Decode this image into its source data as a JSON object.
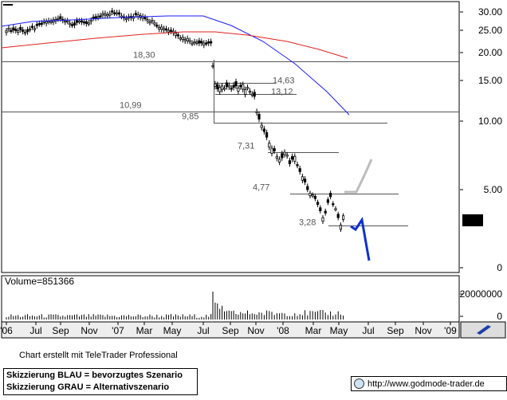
{
  "chart_data": {
    "type": "candlestick",
    "main_y_ticks": [
      "30.00",
      "25.00",
      "20.00",
      "15.00",
      "10.00",
      "5.00",
      "0"
    ],
    "volume_label": "Volume=851366",
    "volume_y_ticks": [
      "20000000",
      "0"
    ],
    "x_ticks": [
      "'06",
      "Jul",
      "Sep",
      "Nov",
      "'07",
      "Mar",
      "May",
      "Jul",
      "Sep",
      "Nov",
      "'08",
      "Mar",
      "May",
      "Jul",
      "Sep",
      "Nov",
      "'09"
    ],
    "last_price": "3.68",
    "levels": [
      {
        "label": "18,30",
        "value": 18.3
      },
      {
        "label": "14,63",
        "value": 14.63
      },
      {
        "label": "13,12",
        "value": 13.12
      },
      {
        "label": "10,99",
        "value": 10.99
      },
      {
        "label": "9,85",
        "value": 9.85
      },
      {
        "label": "7,31",
        "value": 7.31
      },
      {
        "label": "4,77",
        "value": 4.77
      },
      {
        "label": "3,28",
        "value": 3.28
      }
    ],
    "colors": {
      "ma_short": "#1a1aff",
      "ma_long": "#e02020",
      "scenario_blue": "#1030d0",
      "scenario_gray": "#bdbdbd"
    }
  },
  "footer": {
    "credit": "Chart erstellt mit TeleTrader Professional",
    "legend_blue": "Skizzierung BLAU = bevorzugtes Szenario",
    "legend_gray": "Skizzierung GRAU = Alternativszenario",
    "website": "http://www.godmode-trader.de"
  }
}
